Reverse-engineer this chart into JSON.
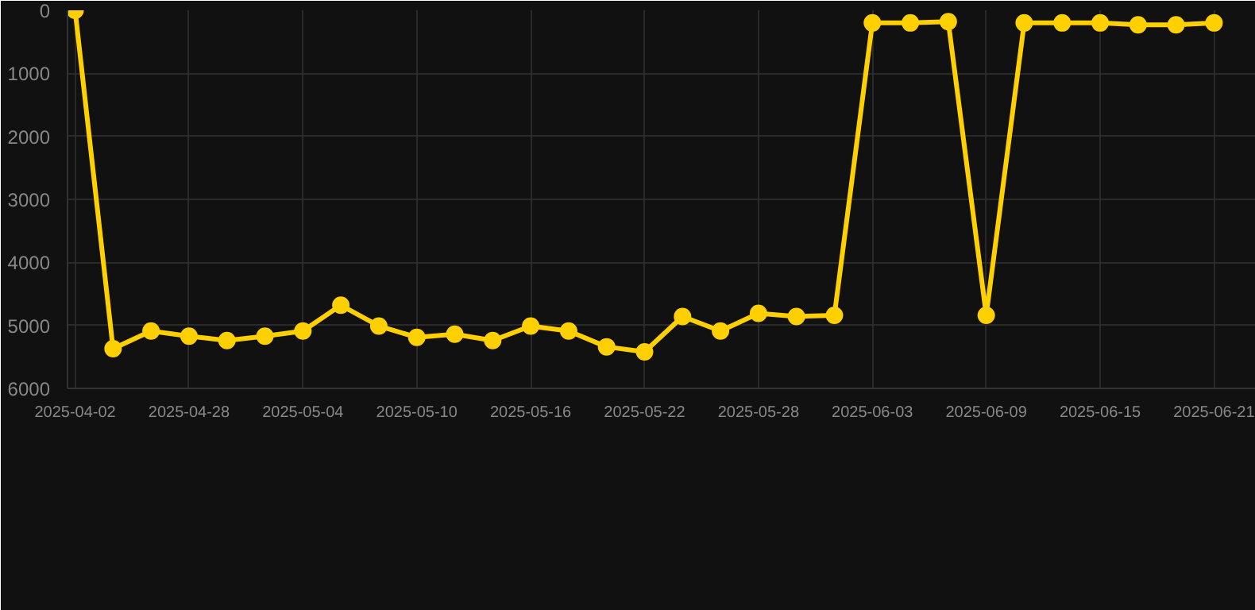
{
  "chart_data": {
    "type": "line",
    "categories": [
      "2025-04-02",
      null,
      null,
      "2025-04-28",
      null,
      null,
      "2025-05-04",
      null,
      null,
      "2025-05-10",
      null,
      null,
      "2025-05-16",
      null,
      null,
      "2025-05-22",
      null,
      null,
      "2025-05-28",
      null,
      null,
      "2025-06-03",
      null,
      null,
      "2025-06-09",
      null,
      null,
      "2025-06-15",
      null,
      null,
      "2025-06-21"
    ],
    "series": [
      {
        "color": "#ffd000",
        "values": [
          0,
          5370,
          5090,
          5170,
          5240,
          5170,
          5090,
          4680,
          5010,
          5190,
          5140,
          5240,
          5010,
          5090,
          5340,
          5420,
          4860,
          5090,
          4810,
          4860,
          4840,
          200,
          200,
          180,
          4840,
          200,
          200,
          200,
          230,
          230,
          200
        ]
      }
    ],
    "ylim": [
      6000,
      0
    ],
    "yticks": [
      0,
      1000,
      2000,
      3000,
      4000,
      5000,
      6000
    ],
    "grid": true,
    "marker": "circle",
    "line_style": "solid"
  }
}
